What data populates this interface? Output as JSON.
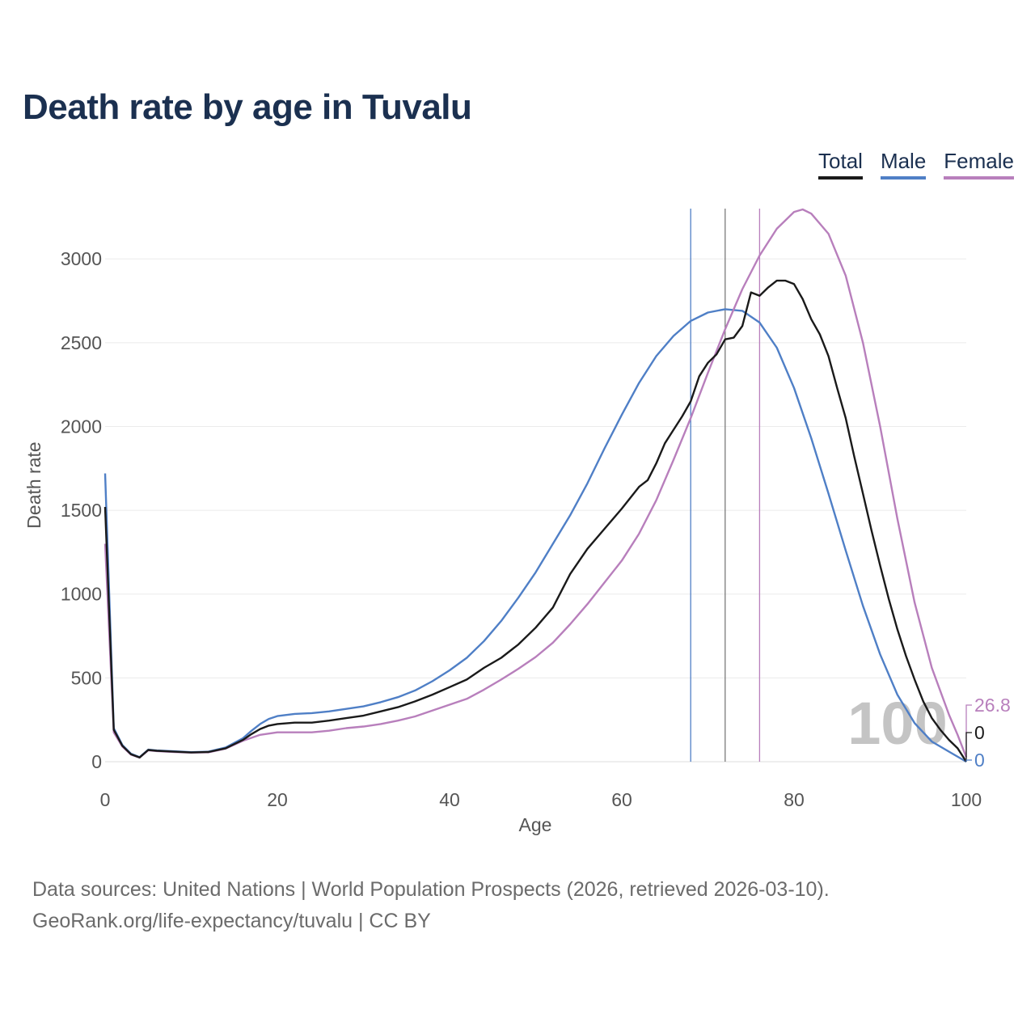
{
  "title": "Death rate by age in Tuvalu",
  "legend": [
    {
      "label": "Total",
      "color": "#1a1a1a"
    },
    {
      "label": "Male",
      "color": "#4f7fc6"
    },
    {
      "label": "Female",
      "color": "#b87fbc"
    }
  ],
  "footer": {
    "source": "Data sources: United Nations | World Population Prospects (2026, retrieved 2026-03-10).",
    "link": "GeoRank.org/life-expectancy/tuvalu | CC BY"
  },
  "chart_data": {
    "type": "line",
    "title": "Death rate by age in Tuvalu",
    "xlabel": "Age",
    "ylabel": "Death rate",
    "xlim": [
      0,
      100
    ],
    "ylim": [
      0,
      3300
    ],
    "xticks": [
      0,
      20,
      40,
      60,
      80,
      100
    ],
    "yticks": [
      0,
      500,
      1000,
      1500,
      2000,
      2500,
      3000
    ],
    "grid": true,
    "legend_position": "top-right",
    "hover_age_label": "100",
    "end_labels": {
      "Female": "26.8",
      "Total": "0",
      "Male": "0"
    },
    "reference_lines": [
      {
        "series": "Male",
        "age": 68
      },
      {
        "series": "Total",
        "age": 72
      },
      {
        "series": "Female",
        "age": 76
      }
    ],
    "series": [
      {
        "name": "Total",
        "color": "#1a1a1a",
        "points": [
          [
            0,
            1520
          ],
          [
            1,
            190
          ],
          [
            2,
            95
          ],
          [
            3,
            45
          ],
          [
            4,
            25
          ],
          [
            5,
            70
          ],
          [
            6,
            65
          ],
          [
            8,
            60
          ],
          [
            10,
            55
          ],
          [
            12,
            58
          ],
          [
            14,
            80
          ],
          [
            16,
            130
          ],
          [
            17,
            165
          ],
          [
            18,
            195
          ],
          [
            19,
            215
          ],
          [
            20,
            225
          ],
          [
            22,
            233
          ],
          [
            24,
            233
          ],
          [
            26,
            245
          ],
          [
            28,
            260
          ],
          [
            30,
            275
          ],
          [
            32,
            300
          ],
          [
            34,
            325
          ],
          [
            36,
            360
          ],
          [
            38,
            400
          ],
          [
            40,
            445
          ],
          [
            42,
            490
          ],
          [
            44,
            560
          ],
          [
            46,
            620
          ],
          [
            48,
            700
          ],
          [
            50,
            800
          ],
          [
            52,
            920
          ],
          [
            54,
            1120
          ],
          [
            56,
            1270
          ],
          [
            58,
            1390
          ],
          [
            60,
            1510
          ],
          [
            62,
            1640
          ],
          [
            63,
            1680
          ],
          [
            64,
            1780
          ],
          [
            65,
            1900
          ],
          [
            66,
            1980
          ],
          [
            67,
            2060
          ],
          [
            68,
            2150
          ],
          [
            69,
            2300
          ],
          [
            70,
            2380
          ],
          [
            71,
            2430
          ],
          [
            72,
            2520
          ],
          [
            73,
            2530
          ],
          [
            74,
            2600
          ],
          [
            75,
            2800
          ],
          [
            76,
            2780
          ],
          [
            77,
            2830
          ],
          [
            78,
            2870
          ],
          [
            79,
            2870
          ],
          [
            80,
            2850
          ],
          [
            81,
            2760
          ],
          [
            82,
            2640
          ],
          [
            83,
            2550
          ],
          [
            84,
            2420
          ],
          [
            85,
            2230
          ],
          [
            86,
            2050
          ],
          [
            87,
            1820
          ],
          [
            88,
            1600
          ],
          [
            89,
            1380
          ],
          [
            90,
            1170
          ],
          [
            91,
            970
          ],
          [
            92,
            790
          ],
          [
            93,
            630
          ],
          [
            94,
            490
          ],
          [
            95,
            360
          ],
          [
            96,
            260
          ],
          [
            97,
            190
          ],
          [
            98,
            130
          ],
          [
            99,
            80
          ],
          [
            100,
            0
          ]
        ]
      },
      {
        "name": "Male",
        "color": "#4f7fc6",
        "points": [
          [
            0,
            1720
          ],
          [
            1,
            200
          ],
          [
            2,
            100
          ],
          [
            3,
            48
          ],
          [
            4,
            27
          ],
          [
            5,
            72
          ],
          [
            6,
            67
          ],
          [
            8,
            62
          ],
          [
            10,
            57
          ],
          [
            12,
            60
          ],
          [
            14,
            85
          ],
          [
            16,
            140
          ],
          [
            17,
            185
          ],
          [
            18,
            225
          ],
          [
            19,
            255
          ],
          [
            20,
            272
          ],
          [
            22,
            285
          ],
          [
            24,
            290
          ],
          [
            26,
            300
          ],
          [
            28,
            315
          ],
          [
            30,
            330
          ],
          [
            32,
            355
          ],
          [
            34,
            385
          ],
          [
            36,
            425
          ],
          [
            38,
            480
          ],
          [
            40,
            545
          ],
          [
            42,
            620
          ],
          [
            44,
            720
          ],
          [
            46,
            840
          ],
          [
            48,
            980
          ],
          [
            50,
            1130
          ],
          [
            52,
            1300
          ],
          [
            54,
            1470
          ],
          [
            56,
            1660
          ],
          [
            58,
            1870
          ],
          [
            60,
            2070
          ],
          [
            62,
            2260
          ],
          [
            64,
            2420
          ],
          [
            66,
            2540
          ],
          [
            68,
            2630
          ],
          [
            70,
            2680
          ],
          [
            72,
            2700
          ],
          [
            74,
            2690
          ],
          [
            76,
            2620
          ],
          [
            78,
            2470
          ],
          [
            80,
            2230
          ],
          [
            82,
            1930
          ],
          [
            84,
            1600
          ],
          [
            86,
            1260
          ],
          [
            88,
            930
          ],
          [
            90,
            640
          ],
          [
            92,
            400
          ],
          [
            94,
            230
          ],
          [
            96,
            120
          ],
          [
            98,
            60
          ],
          [
            100,
            0
          ]
        ]
      },
      {
        "name": "Female",
        "color": "#b87fbc",
        "points": [
          [
            0,
            1300
          ],
          [
            1,
            175
          ],
          [
            2,
            90
          ],
          [
            3,
            42
          ],
          [
            4,
            24
          ],
          [
            5,
            68
          ],
          [
            6,
            63
          ],
          [
            8,
            58
          ],
          [
            10,
            54
          ],
          [
            12,
            56
          ],
          [
            14,
            78
          ],
          [
            16,
            125
          ],
          [
            18,
            160
          ],
          [
            20,
            175
          ],
          [
            22,
            175
          ],
          [
            24,
            175
          ],
          [
            26,
            185
          ],
          [
            28,
            200
          ],
          [
            30,
            210
          ],
          [
            32,
            225
          ],
          [
            34,
            245
          ],
          [
            36,
            270
          ],
          [
            38,
            305
          ],
          [
            40,
            340
          ],
          [
            42,
            375
          ],
          [
            44,
            430
          ],
          [
            46,
            490
          ],
          [
            48,
            555
          ],
          [
            50,
            625
          ],
          [
            52,
            710
          ],
          [
            54,
            820
          ],
          [
            56,
            940
          ],
          [
            58,
            1070
          ],
          [
            60,
            1200
          ],
          [
            62,
            1360
          ],
          [
            64,
            1560
          ],
          [
            66,
            1800
          ],
          [
            68,
            2050
          ],
          [
            70,
            2320
          ],
          [
            72,
            2580
          ],
          [
            74,
            2820
          ],
          [
            76,
            3020
          ],
          [
            78,
            3180
          ],
          [
            80,
            3280
          ],
          [
            81,
            3295
          ],
          [
            82,
            3270
          ],
          [
            84,
            3150
          ],
          [
            86,
            2900
          ],
          [
            88,
            2500
          ],
          [
            90,
            2000
          ],
          [
            92,
            1450
          ],
          [
            94,
            950
          ],
          [
            96,
            560
          ],
          [
            98,
            280
          ],
          [
            99,
            160
          ],
          [
            100,
            27
          ]
        ]
      }
    ]
  }
}
